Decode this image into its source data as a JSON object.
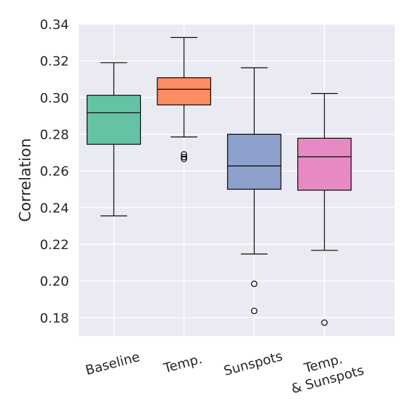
{
  "chart_data": {
    "type": "box",
    "ylabel": "Correlation",
    "ylim": [
      0.17,
      0.34
    ],
    "yticks": [
      "0.18",
      "0.20",
      "0.22",
      "0.24",
      "0.26",
      "0.28",
      "0.30",
      "0.32",
      "0.34"
    ],
    "ytick_values": [
      0.18,
      0.2,
      0.22,
      0.24,
      0.26,
      0.28,
      0.3,
      0.32,
      0.34
    ],
    "grid": true,
    "background_color": "#eaeaf2",
    "categories": [
      {
        "lines": [
          "Baseline"
        ]
      },
      {
        "lines": [
          "Temp."
        ]
      },
      {
        "lines": [
          "Sunspots"
        ]
      },
      {
        "lines": [
          "Temp.",
          "& Sunspots"
        ]
      }
    ],
    "boxes": [
      {
        "color": "#66c2a5",
        "whisker_low": 0.2355,
        "q1": 0.2745,
        "median": 0.2917,
        "q3": 0.3012,
        "whisker_high": 0.319,
        "outliers": []
      },
      {
        "color": "#fc8d62",
        "whisker_low": 0.2785,
        "q1": 0.296,
        "median": 0.3045,
        "q3": 0.3108,
        "whisker_high": 0.3327,
        "outliers": [
          0.269,
          0.2675,
          0.2665
        ]
      },
      {
        "color": "#8da0cb",
        "whisker_low": 0.2147,
        "q1": 0.25,
        "median": 0.2627,
        "q3": 0.28,
        "whisker_high": 0.3162,
        "outliers": [
          0.1985,
          0.1837
        ]
      },
      {
        "color": "#e78ac3",
        "whisker_low": 0.2167,
        "q1": 0.2495,
        "median": 0.2677,
        "q3": 0.2778,
        "whisker_high": 0.3022,
        "outliers": [
          0.1773
        ]
      }
    ]
  }
}
